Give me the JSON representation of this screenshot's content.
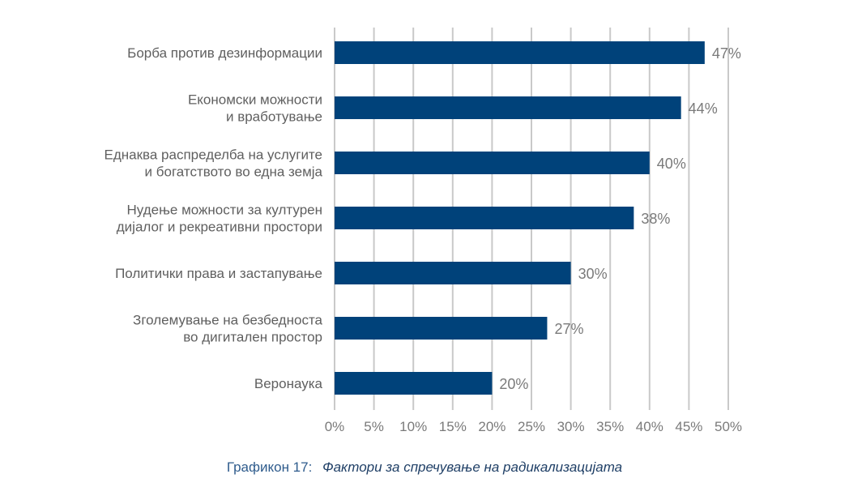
{
  "chart_data": {
    "type": "bar",
    "orientation": "horizontal",
    "categories": [
      [
        "Борба против дезинформации"
      ],
      [
        "Економски можности",
        "и вработување"
      ],
      [
        "Еднаква распределба на услугите",
        "и богатството во една земја"
      ],
      [
        "Нудење можности за културен",
        "дијалог и рекреативни простори"
      ],
      [
        "Политички права и застапување"
      ],
      [
        "Зголемување на безбедноста",
        "во дигитален простор"
      ],
      [
        "Веронаука"
      ]
    ],
    "values": [
      47,
      44,
      40,
      38,
      30,
      27,
      20
    ],
    "value_labels": [
      "47%",
      "44%",
      "40%",
      "38%",
      "30%",
      "27%",
      "20%"
    ],
    "xlim": [
      0,
      50
    ],
    "x_ticks": [
      0,
      5,
      10,
      15,
      20,
      25,
      30,
      35,
      40,
      45,
      50
    ],
    "x_tick_labels": [
      "0%",
      "5%",
      "10%",
      "15%",
      "20%",
      "25%",
      "30%",
      "35%",
      "40%",
      "45%",
      "50%"
    ],
    "grid": true,
    "bar_color": "#00427a"
  },
  "caption": {
    "label": "Графикон 17:",
    "title": "Фактори за спречување на радикализацијата"
  }
}
